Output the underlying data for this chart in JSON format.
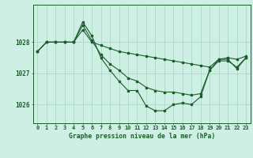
{
  "title": "Graphe pression niveau de la mer (hPa)",
  "background_color": "#cef0e4",
  "grid_color": "#aad8c8",
  "line_color": "#1a5c2a",
  "x_labels": [
    "0",
    "1",
    "2",
    "3",
    "4",
    "5",
    "6",
    "7",
    "8",
    "9",
    "10",
    "11",
    "12",
    "13",
    "14",
    "15",
    "16",
    "17",
    "18",
    "19",
    "20",
    "21",
    "22",
    "23"
  ],
  "xlim": [
    -0.5,
    23.5
  ],
  "ylim": [
    1025.4,
    1029.2
  ],
  "yticks": [
    1026,
    1027,
    1028
  ],
  "series_sharp": [
    1027.7,
    1028.0,
    1028.0,
    1028.0,
    1028.0,
    1028.65,
    1028.2,
    1027.5,
    1027.1,
    1026.75,
    1026.45,
    1026.45,
    1025.95,
    1025.8,
    1025.8,
    1026.0,
    1026.05,
    1026.0,
    1026.25,
    1027.1,
    1027.45,
    1027.45,
    1027.15,
    1027.5
  ],
  "series_mid": [
    1027.7,
    1028.0,
    1028.0,
    1028.0,
    1028.0,
    1028.55,
    1028.05,
    1027.6,
    1027.3,
    1027.1,
    1026.85,
    1026.75,
    1026.55,
    1026.45,
    1026.4,
    1026.4,
    1026.35,
    1026.3,
    1026.35,
    1027.1,
    1027.4,
    1027.4,
    1027.2,
    1027.5
  ],
  "series_flat": [
    1027.7,
    1028.0,
    1028.0,
    1028.0,
    1028.0,
    1028.4,
    1028.0,
    1027.9,
    1027.8,
    1027.7,
    1027.65,
    1027.6,
    1027.55,
    1027.5,
    1027.45,
    1027.4,
    1027.35,
    1027.3,
    1027.25,
    1027.2,
    1027.45,
    1027.5,
    1027.45,
    1027.55
  ]
}
